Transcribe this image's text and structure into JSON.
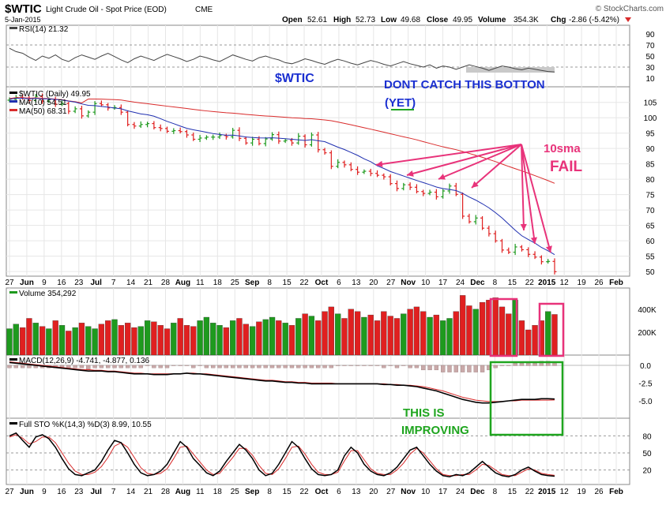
{
  "header": {
    "symbol": "$WTIC",
    "name": "Light Crude Oil - Spot Price (EOD)",
    "exchange": "CME",
    "date": "5-Jan-2015",
    "brand": "© StockCharts.com",
    "open_label": "Open",
    "open": "52.61",
    "high_label": "High",
    "high": "52.73",
    "low_label": "Low",
    "low": "49.68",
    "close_label": "Close",
    "close": "49.95",
    "volume_label": "Volume",
    "volume": "354.3K",
    "chg_label": "Chg",
    "chg": "-2.86 (-5.42%)"
  },
  "colors": {
    "up": "#1e9a1e",
    "down": "#e02020",
    "ma10": "#1f2fb0",
    "ma50": "#d92b2b",
    "annotation_pink": "#e8337a",
    "annotation_blue": "#1a2fd1",
    "annotation_green": "#1fa51f"
  },
  "annotations": {
    "wtic": "$WTIC",
    "dont_catch_1": "DONT CATCH THIS BOTTON",
    "dont_catch_2": "(YET)",
    "sma10": "10sma",
    "fail": "FAIL",
    "improving_1": "THIS IS",
    "improving_2": "IMPROVING"
  },
  "chart_data": [
    {
      "type": "line",
      "panel": "rsi",
      "legend": "RSI(14) 21.32",
      "y_ticks": [
        "90",
        "70",
        "50",
        "30",
        "10"
      ],
      "ylim": [
        0,
        100
      ],
      "values": [
        64,
        58,
        55,
        48,
        42,
        50,
        46,
        52,
        44,
        40,
        47,
        52,
        48,
        44,
        50,
        55,
        49,
        43,
        38,
        45,
        50,
        46,
        42,
        48,
        53,
        49,
        45,
        40,
        44,
        50,
        47,
        43,
        40,
        46,
        52,
        48,
        44,
        41,
        47,
        50,
        46,
        43,
        38,
        36,
        40,
        45,
        42,
        38,
        35,
        40,
        44,
        41,
        37,
        34,
        38,
        42,
        39,
        35,
        32,
        36,
        40,
        36,
        33,
        30,
        34,
        28,
        32,
        30,
        26,
        30,
        34,
        31,
        28,
        24,
        28,
        32,
        30,
        27,
        25,
        28,
        26,
        24,
        22,
        21
      ]
    },
    {
      "type": "bar",
      "panel": "price",
      "title": "$WTIC (Daily) 49.95",
      "series": [
        {
          "name": "MA(10) 54.51"
        },
        {
          "name": "MA(50) 68.31"
        }
      ],
      "y_ticks": [
        "105",
        "100",
        "95",
        "90",
        "85",
        "80",
        "75",
        "70",
        "65",
        "60",
        "55",
        "50"
      ],
      "ylim": [
        48.5,
        108
      ],
      "x_labels": [
        "27",
        "Jun",
        "9",
        "16",
        "23",
        "Jul",
        "7",
        "14",
        "21",
        "28",
        "Aug",
        "11",
        "18",
        "25",
        "Sep",
        "8",
        "15",
        "22",
        "Oct",
        "6",
        "13",
        "20",
        "27",
        "Nov",
        "10",
        "17",
        "24",
        "Dec",
        "8",
        "15",
        "22",
        "2015",
        "12",
        "19",
        "26",
        "Feb"
      ],
      "close": [
        106.0,
        106.6,
        106.4,
        105.6,
        106.9,
        105.4,
        106.0,
        104.4,
        104.6,
        102.1,
        102.9,
        100.6,
        101.8,
        104.6,
        104.2,
        103.2,
        103.3,
        101.8,
        97.8,
        97.3,
        97.8,
        98.1,
        96.8,
        96.5,
        95.6,
        95.8,
        95.5,
        94.4,
        93.0,
        93.4,
        93.7,
        93.7,
        94.2,
        93.8,
        95.9,
        93.3,
        91.8,
        93.0,
        91.6,
        93.1,
        94.5,
        92.4,
        92.6,
        91.8,
        94.0,
        91.2,
        94.4,
        89.6,
        88.6,
        84.2,
        85.5,
        84.7,
        83.2,
        82.3,
        82.6,
        81.9,
        81.3,
        80.8,
        78.6,
        77.0,
        78.2,
        77.4,
        76.0,
        75.4,
        75.8,
        74.3,
        76.2,
        77.8,
        75.1,
        68.0,
        66.2,
        67.4,
        64.1,
        62.3,
        60.0,
        57.0,
        56.3,
        58.0,
        57.1,
        55.6,
        54.7,
        53.2,
        53.3,
        49.95
      ]
    },
    {
      "type": "bar",
      "panel": "volume",
      "legend": "Volume 354,292",
      "y_ticks": [
        "400K",
        "200K"
      ],
      "ylim": [
        0,
        550000
      ],
      "values": [
        230000,
        270000,
        240000,
        320000,
        280000,
        250000,
        230000,
        300000,
        260000,
        210000,
        240000,
        280000,
        250000,
        230000,
        270000,
        300000,
        310000,
        260000,
        280000,
        240000,
        250000,
        300000,
        290000,
        260000,
        230000,
        280000,
        320000,
        260000,
        250000,
        300000,
        330000,
        280000,
        260000,
        240000,
        300000,
        320000,
        270000,
        250000,
        290000,
        310000,
        330000,
        300000,
        280000,
        260000,
        320000,
        360000,
        340000,
        300000,
        380000,
        420000,
        360000,
        320000,
        400000,
        380000,
        330000,
        350000,
        300000,
        380000,
        340000,
        320000,
        360000,
        400000,
        420000,
        380000,
        330000,
        350000,
        300000,
        320000,
        380000,
        520000,
        430000,
        400000,
        460000,
        480000,
        500000,
        420000,
        360000,
        480000,
        300000,
        220000,
        260000,
        300000,
        380000,
        354292
      ]
    },
    {
      "type": "line",
      "panel": "macd",
      "legend": "MACD(12,26,9) -4.741, -4.877, 0.136",
      "y_ticks": [
        "0.0",
        "-2.5",
        "-5.0"
      ],
      "ylim": [
        -7,
        1
      ],
      "macd": [
        0.4,
        0.3,
        0.2,
        0.1,
        0.0,
        -0.1,
        -0.2,
        -0.3,
        -0.4,
        -0.5,
        -0.6,
        -0.7,
        -0.8,
        -0.8,
        -0.8,
        -0.9,
        -0.9,
        -1.0,
        -1.1,
        -1.2,
        -1.2,
        -1.2,
        -1.3,
        -1.3,
        -1.3,
        -1.2,
        -1.2,
        -1.1,
        -1.2,
        -1.2,
        -1.3,
        -1.4,
        -1.5,
        -1.6,
        -1.7,
        -1.8,
        -1.9,
        -2.0,
        -2.1,
        -2.2,
        -2.2,
        -2.3,
        -2.4,
        -2.4,
        -2.5,
        -2.5,
        -2.6,
        -2.6,
        -2.6,
        -2.6,
        -2.6,
        -2.6,
        -2.6,
        -2.6,
        -2.6,
        -2.6,
        -2.6,
        -2.7,
        -2.7,
        -2.8,
        -2.8,
        -2.9,
        -3.0,
        -3.2,
        -3.4,
        -3.6,
        -3.9,
        -4.2,
        -4.5,
        -4.8,
        -5.0,
        -5.2,
        -5.3,
        -5.3,
        -5.2,
        -5.1,
        -5.0,
        -4.9,
        -4.8,
        -4.8,
        -4.8,
        -4.7,
        -4.7,
        -4.741
      ],
      "signal": [
        0.5,
        0.4,
        0.3,
        0.2,
        0.1,
        0.0,
        -0.1,
        -0.2,
        -0.3,
        -0.4,
        -0.5,
        -0.6,
        -0.6,
        -0.7,
        -0.7,
        -0.8,
        -0.8,
        -0.9,
        -1.0,
        -1.1,
        -1.1,
        -1.2,
        -1.2,
        -1.2,
        -1.2,
        -1.2,
        -1.2,
        -1.1,
        -1.1,
        -1.2,
        -1.2,
        -1.3,
        -1.4,
        -1.5,
        -1.6,
        -1.7,
        -1.8,
        -1.9,
        -2.0,
        -2.1,
        -2.1,
        -2.2,
        -2.3,
        -2.3,
        -2.4,
        -2.4,
        -2.5,
        -2.5,
        -2.5,
        -2.5,
        -2.6,
        -2.6,
        -2.6,
        -2.6,
        -2.6,
        -2.6,
        -2.6,
        -2.6,
        -2.7,
        -2.7,
        -2.8,
        -2.8,
        -2.9,
        -3.0,
        -3.2,
        -3.4,
        -3.6,
        -3.9,
        -4.2,
        -4.5,
        -4.7,
        -4.9,
        -5.0,
        -5.1,
        -5.1,
        -5.1,
        -5.0,
        -5.0,
        -4.9,
        -4.9,
        -4.9,
        -4.9,
        -4.9,
        -4.877
      ]
    },
    {
      "type": "line",
      "panel": "stochastic",
      "legend": "Full STO %K(14,3) %D(3) 8.99, 10.55",
      "y_ticks": [
        "80",
        "50",
        "20"
      ],
      "ylim": [
        0,
        100
      ],
      "k": [
        80,
        85,
        72,
        60,
        78,
        82,
        75,
        60,
        40,
        22,
        12,
        10,
        15,
        20,
        35,
        55,
        72,
        68,
        50,
        30,
        15,
        10,
        12,
        18,
        30,
        50,
        70,
        60,
        40,
        28,
        15,
        10,
        18,
        35,
        50,
        65,
        55,
        40,
        20,
        10,
        14,
        30,
        50,
        70,
        60,
        40,
        22,
        12,
        10,
        12,
        20,
        45,
        60,
        50,
        30,
        18,
        12,
        10,
        15,
        25,
        40,
        55,
        60,
        45,
        30,
        18,
        10,
        8,
        12,
        10,
        15,
        25,
        35,
        25,
        15,
        10,
        8,
        12,
        20,
        25,
        18,
        12,
        10,
        8.99
      ],
      "d": [
        78,
        82,
        76,
        66,
        70,
        78,
        78,
        68,
        50,
        32,
        18,
        12,
        12,
        16,
        26,
        42,
        62,
        68,
        60,
        42,
        24,
        14,
        12,
        14,
        22,
        40,
        60,
        62,
        48,
        34,
        20,
        12,
        14,
        28,
        42,
        58,
        58,
        46,
        28,
        14,
        12,
        22,
        40,
        60,
        62,
        48,
        30,
        16,
        12,
        12,
        16,
        36,
        54,
        54,
        38,
        22,
        14,
        12,
        12,
        20,
        32,
        48,
        58,
        50,
        36,
        22,
        12,
        10,
        10,
        12,
        12,
        20,
        30,
        28,
        20,
        12,
        10,
        10,
        16,
        22,
        20,
        14,
        12,
        10.55
      ]
    }
  ],
  "axis": {
    "x_labels_positions_note": ""
  }
}
